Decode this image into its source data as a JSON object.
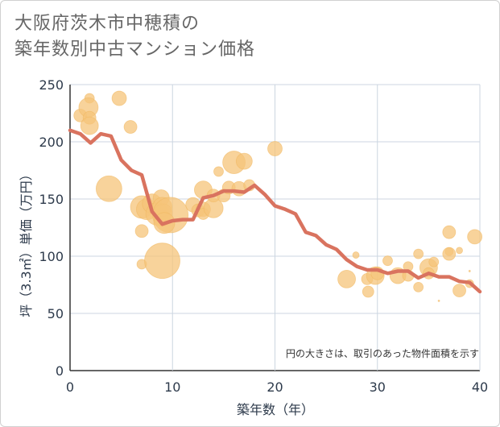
{
  "title_lines": [
    "大阪府茨木市中穂積の",
    "築年数別中古マンション価格"
  ],
  "chart_data": {
    "type": "scatter",
    "xlabel": "築年数（年）",
    "ylabel": "坪（3.3㎡）単価（万円）",
    "xlim": [
      0,
      40
    ],
    "ylim": [
      0,
      250
    ],
    "xticks": [
      0,
      10,
      20,
      30,
      40
    ],
    "yticks": [
      0,
      50,
      100,
      150,
      200,
      250
    ],
    "grid": true,
    "annotation": "円の大きさは、取引のあった物件面積を示す",
    "colors": {
      "bubble": "#f5c47a",
      "line": "#d9735f"
    },
    "scatter": [
      {
        "x": 1,
        "y": 223,
        "s": 8
      },
      {
        "x": 1.9,
        "y": 238,
        "s": 6
      },
      {
        "x": 1.8,
        "y": 230,
        "s": 12
      },
      {
        "x": 1.9,
        "y": 221,
        "s": 8
      },
      {
        "x": 1.9,
        "y": 214,
        "s": 11
      },
      {
        "x": 4.8,
        "y": 238,
        "s": 9
      },
      {
        "x": 5.9,
        "y": 213,
        "s": 8
      },
      {
        "x": 3.8,
        "y": 159,
        "s": 16
      },
      {
        "x": 7,
        "y": 143,
        "s": 14
      },
      {
        "x": 7.5,
        "y": 141,
        "s": 13
      },
      {
        "x": 8,
        "y": 146,
        "s": 12
      },
      {
        "x": 8.5,
        "y": 137,
        "s": 14
      },
      {
        "x": 8.9,
        "y": 151,
        "s": 10
      },
      {
        "x": 9,
        "y": 143,
        "s": 12
      },
      {
        "x": 9,
        "y": 133,
        "s": 10
      },
      {
        "x": 9.1,
        "y": 138,
        "s": 11
      },
      {
        "x": 9.8,
        "y": 136,
        "s": 22
      },
      {
        "x": 9.2,
        "y": 129,
        "s": 13
      },
      {
        "x": 7,
        "y": 122,
        "s": 8
      },
      {
        "x": 7,
        "y": 93,
        "s": 6
      },
      {
        "x": 9,
        "y": 96,
        "s": 22
      },
      {
        "x": 12,
        "y": 145,
        "s": 9
      },
      {
        "x": 12.5,
        "y": 140,
        "s": 8
      },
      {
        "x": 13,
        "y": 158,
        "s": 11
      },
      {
        "x": 13,
        "y": 141,
        "s": 9
      },
      {
        "x": 13,
        "y": 137,
        "s": 7
      },
      {
        "x": 14,
        "y": 142,
        "s": 12
      },
      {
        "x": 14,
        "y": 153,
        "s": 8
      },
      {
        "x": 14.5,
        "y": 174,
        "s": 6
      },
      {
        "x": 15,
        "y": 153,
        "s": 8
      },
      {
        "x": 15.5,
        "y": 160,
        "s": 8
      },
      {
        "x": 16,
        "y": 182,
        "s": 14
      },
      {
        "x": 16.5,
        "y": 159,
        "s": 9
      },
      {
        "x": 17,
        "y": 183,
        "s": 10
      },
      {
        "x": 17.5,
        "y": 162,
        "s": 7
      },
      {
        "x": 20,
        "y": 194,
        "s": 9
      },
      {
        "x": 27,
        "y": 80,
        "s": 11
      },
      {
        "x": 27.9,
        "y": 101,
        "s": 4
      },
      {
        "x": 29,
        "y": 80,
        "s": 7
      },
      {
        "x": 29.1,
        "y": 69,
        "s": 7
      },
      {
        "x": 29.8,
        "y": 83,
        "s": 11
      },
      {
        "x": 30,
        "y": 85,
        "s": 8
      },
      {
        "x": 31,
        "y": 96,
        "s": 6
      },
      {
        "x": 32,
        "y": 83,
        "s": 10
      },
      {
        "x": 33,
        "y": 83,
        "s": 7
      },
      {
        "x": 33,
        "y": 91,
        "s": 6
      },
      {
        "x": 34,
        "y": 102,
        "s": 6
      },
      {
        "x": 34,
        "y": 73,
        "s": 6
      },
      {
        "x": 35,
        "y": 90,
        "s": 11
      },
      {
        "x": 35,
        "y": 85,
        "s": 7
      },
      {
        "x": 35.5,
        "y": 95,
        "s": 6
      },
      {
        "x": 36,
        "y": 61,
        "s": 1
      },
      {
        "x": 37,
        "y": 121,
        "s": 8
      },
      {
        "x": 37,
        "y": 104,
        "s": 5
      },
      {
        "x": 37,
        "y": 102,
        "s": 8
      },
      {
        "x": 38,
        "y": 70,
        "s": 8
      },
      {
        "x": 38,
        "y": 105,
        "s": 4
      },
      {
        "x": 39,
        "y": 76,
        "s": 5
      },
      {
        "x": 39.5,
        "y": 117,
        "s": 9
      },
      {
        "x": 39,
        "y": 87,
        "s": 1
      }
    ],
    "series": [
      {
        "x": [
          0,
          1,
          2,
          3,
          4,
          5,
          6,
          7,
          8,
          9,
          10,
          11,
          12,
          13,
          14,
          15,
          16,
          17,
          18,
          19,
          20,
          21,
          22,
          23,
          24,
          25,
          26,
          27,
          28,
          29,
          30,
          31,
          32,
          33,
          34,
          35,
          36,
          37,
          38,
          39,
          40
        ],
        "values": [
          210,
          207,
          199,
          207,
          205,
          184,
          175,
          171,
          139,
          128,
          131,
          132,
          132,
          151,
          153,
          157,
          157,
          156,
          162,
          154,
          144,
          141,
          137,
          121,
          118,
          110,
          106,
          97,
          91,
          88,
          88,
          85,
          87,
          87,
          81,
          85,
          82,
          82,
          78,
          77,
          69
        ]
      }
    ]
  }
}
